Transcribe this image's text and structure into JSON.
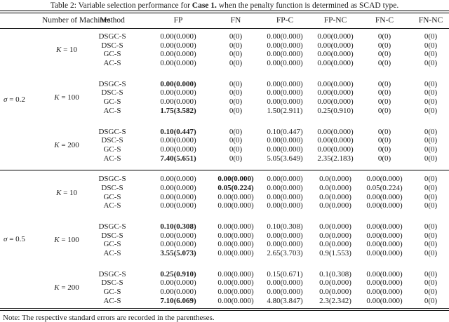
{
  "caption": {
    "prefix": "Table 2: Variable selection performance for ",
    "bold": "Case 1.",
    "suffix": " when the penalty function is determined as SCAD type."
  },
  "note": "Note: The respective standard errors are recorded in the parentheses.",
  "table": {
    "headers": [
      "Number of Machines",
      "Method",
      "FP",
      "FN",
      "FP-C",
      "FP-NC",
      "FN-C",
      "FN-NC"
    ],
    "sections": [
      {
        "sigma": "σ = 0.2",
        "blocks": [
          {
            "k": "K = 10",
            "rows": [
              {
                "method": "DSGC-S",
                "values": [
                  "0.00(0.000)",
                  "0(0)",
                  "0.00(0.000)",
                  "0.00(0.000)",
                  "0(0)",
                  "0(0)"
                ],
                "bold": []
              },
              {
                "method": "DSC-S",
                "values": [
                  "0.00(0.000)",
                  "0(0)",
                  "0.00(0.000)",
                  "0.00(0.000)",
                  "0(0)",
                  "0(0)"
                ],
                "bold": []
              },
              {
                "method": "GC-S",
                "values": [
                  "0.00(0.000)",
                  "0(0)",
                  "0.00(0.000)",
                  "0.00(0.000)",
                  "0(0)",
                  "0(0)"
                ],
                "bold": []
              },
              {
                "method": "AC-S",
                "values": [
                  "0.00(0.000)",
                  "0(0)",
                  "0.00(0.000)",
                  "0.00(0.000)",
                  "0(0)",
                  "0(0)"
                ],
                "bold": []
              }
            ]
          },
          {
            "k": "K = 100",
            "rows": [
              {
                "method": "DSGC-S",
                "values": [
                  "0.00(0.000)",
                  "0(0)",
                  "0.00(0.000)",
                  "0.00(0.000)",
                  "0(0)",
                  "0(0)"
                ],
                "bold": [
                  0
                ]
              },
              {
                "method": "DSC-S",
                "values": [
                  "0.00(0.000)",
                  "0(0)",
                  "0.00(0.000)",
                  "0.00(0.000)",
                  "0(0)",
                  "0(0)"
                ],
                "bold": []
              },
              {
                "method": "GC-S",
                "values": [
                  "0.00(0.000)",
                  "0(0)",
                  "0.00(0.000)",
                  "0.00(0.000)",
                  "0(0)",
                  "0(0)"
                ],
                "bold": []
              },
              {
                "method": "AC-S",
                "values": [
                  "1.75(3.582)",
                  "0(0)",
                  "1.50(2.911)",
                  "0.25(0.910)",
                  "0(0)",
                  "0(0)"
                ],
                "bold": [
                  0
                ]
              }
            ]
          },
          {
            "k": "K = 200",
            "rows": [
              {
                "method": "DSGC-S",
                "values": [
                  "0.10(0.447)",
                  "0(0)",
                  "0.10(0.447)",
                  "0.00(0.000)",
                  "0(0)",
                  "0(0)"
                ],
                "bold": [
                  0
                ]
              },
              {
                "method": "DSC-S",
                "values": [
                  "0.00(0.000)",
                  "0(0)",
                  "0.00(0.000)",
                  "0.00(0.000)",
                  "0(0)",
                  "0(0)"
                ],
                "bold": []
              },
              {
                "method": "GC-S",
                "values": [
                  "0.00(0.000)",
                  "0(0)",
                  "0.00(0.000)",
                  "0.00(0.000)",
                  "0(0)",
                  "0(0)"
                ],
                "bold": []
              },
              {
                "method": "AC-S",
                "values": [
                  "7.40(5.651)",
                  "0(0)",
                  "5.05(3.649)",
                  "2.35(2.183)",
                  "0(0)",
                  "0(0)"
                ],
                "bold": [
                  0
                ]
              }
            ]
          }
        ]
      },
      {
        "sigma": "σ = 0.5",
        "blocks": [
          {
            "k": "K = 10",
            "rows": [
              {
                "method": "DSGC-S",
                "values": [
                  "0.00(0.000)",
                  "0.00(0.000)",
                  "0.00(0.000)",
                  "0.0(0.000)",
                  "0.00(0.000)",
                  "0(0)"
                ],
                "bold": [
                  1
                ]
              },
              {
                "method": "DSC-S",
                "values": [
                  "0.00(0.000)",
                  "0.05(0.224)",
                  "0.00(0.000)",
                  "0.0(0.000)",
                  "0.05(0.224)",
                  "0(0)"
                ],
                "bold": [
                  1
                ]
              },
              {
                "method": "GC-S",
                "values": [
                  "0.00(0.000)",
                  "0.00(0.000)",
                  "0.00(0.000)",
                  "0.0(0.000)",
                  "0.00(0.000)",
                  "0(0)"
                ],
                "bold": []
              },
              {
                "method": "AC-S",
                "values": [
                  "0.00(0.000)",
                  "0.00(0.000)",
                  "0.00(0.000)",
                  "0.0(0.000)",
                  "0.00(0.000)",
                  "0(0)"
                ],
                "bold": []
              }
            ]
          },
          {
            "k": "K = 100",
            "rows": [
              {
                "method": "DSGC-S",
                "values": [
                  "0.10(0.308)",
                  "0.00(0.000)",
                  "0.10(0.308)",
                  "0.0(0.000)",
                  "0.00(0.000)",
                  "0(0)"
                ],
                "bold": [
                  0
                ]
              },
              {
                "method": "DSC-S",
                "values": [
                  "0.00(0.000)",
                  "0.00(0.000)",
                  "0.00(0.000)",
                  "0.0(0.000)",
                  "0.00(0.000)",
                  "0(0)"
                ],
                "bold": []
              },
              {
                "method": "GC-S",
                "values": [
                  "0.00(0.000)",
                  "0.00(0.000)",
                  "0.00(0.000)",
                  "0.0(0.000)",
                  "0.00(0.000)",
                  "0(0)"
                ],
                "bold": []
              },
              {
                "method": "AC-S",
                "values": [
                  "3.55(5.073)",
                  "0.00(0.000)",
                  "2.65(3.703)",
                  "0.9(1.553)",
                  "0.00(0.000)",
                  "0(0)"
                ],
                "bold": [
                  0
                ]
              }
            ]
          },
          {
            "k": "K = 200",
            "rows": [
              {
                "method": "DSGC-S",
                "values": [
                  "0.25(0.910)",
                  "0.00(0.000)",
                  "0.15(0.671)",
                  "0.1(0.308)",
                  "0.00(0.000)",
                  "0(0)"
                ],
                "bold": [
                  0
                ]
              },
              {
                "method": "DSC-S",
                "values": [
                  "0.00(0.000)",
                  "0.00(0.000)",
                  "0.00(0.000)",
                  "0.0(0.000)",
                  "0.00(0.000)",
                  "0(0)"
                ],
                "bold": []
              },
              {
                "method": "GC-S",
                "values": [
                  "0.00(0.000)",
                  "0.00(0.000)",
                  "0.00(0.000)",
                  "0.0(0.000)",
                  "0.00(0.000)",
                  "0(0)"
                ],
                "bold": []
              },
              {
                "method": "AC-S",
                "values": [
                  "7.10(6.069)",
                  "0.00(0.000)",
                  "4.80(3.847)",
                  "2.3(2.342)",
                  "0.00(0.000)",
                  "0(0)"
                ],
                "bold": [
                  0
                ]
              }
            ]
          }
        ]
      }
    ]
  }
}
